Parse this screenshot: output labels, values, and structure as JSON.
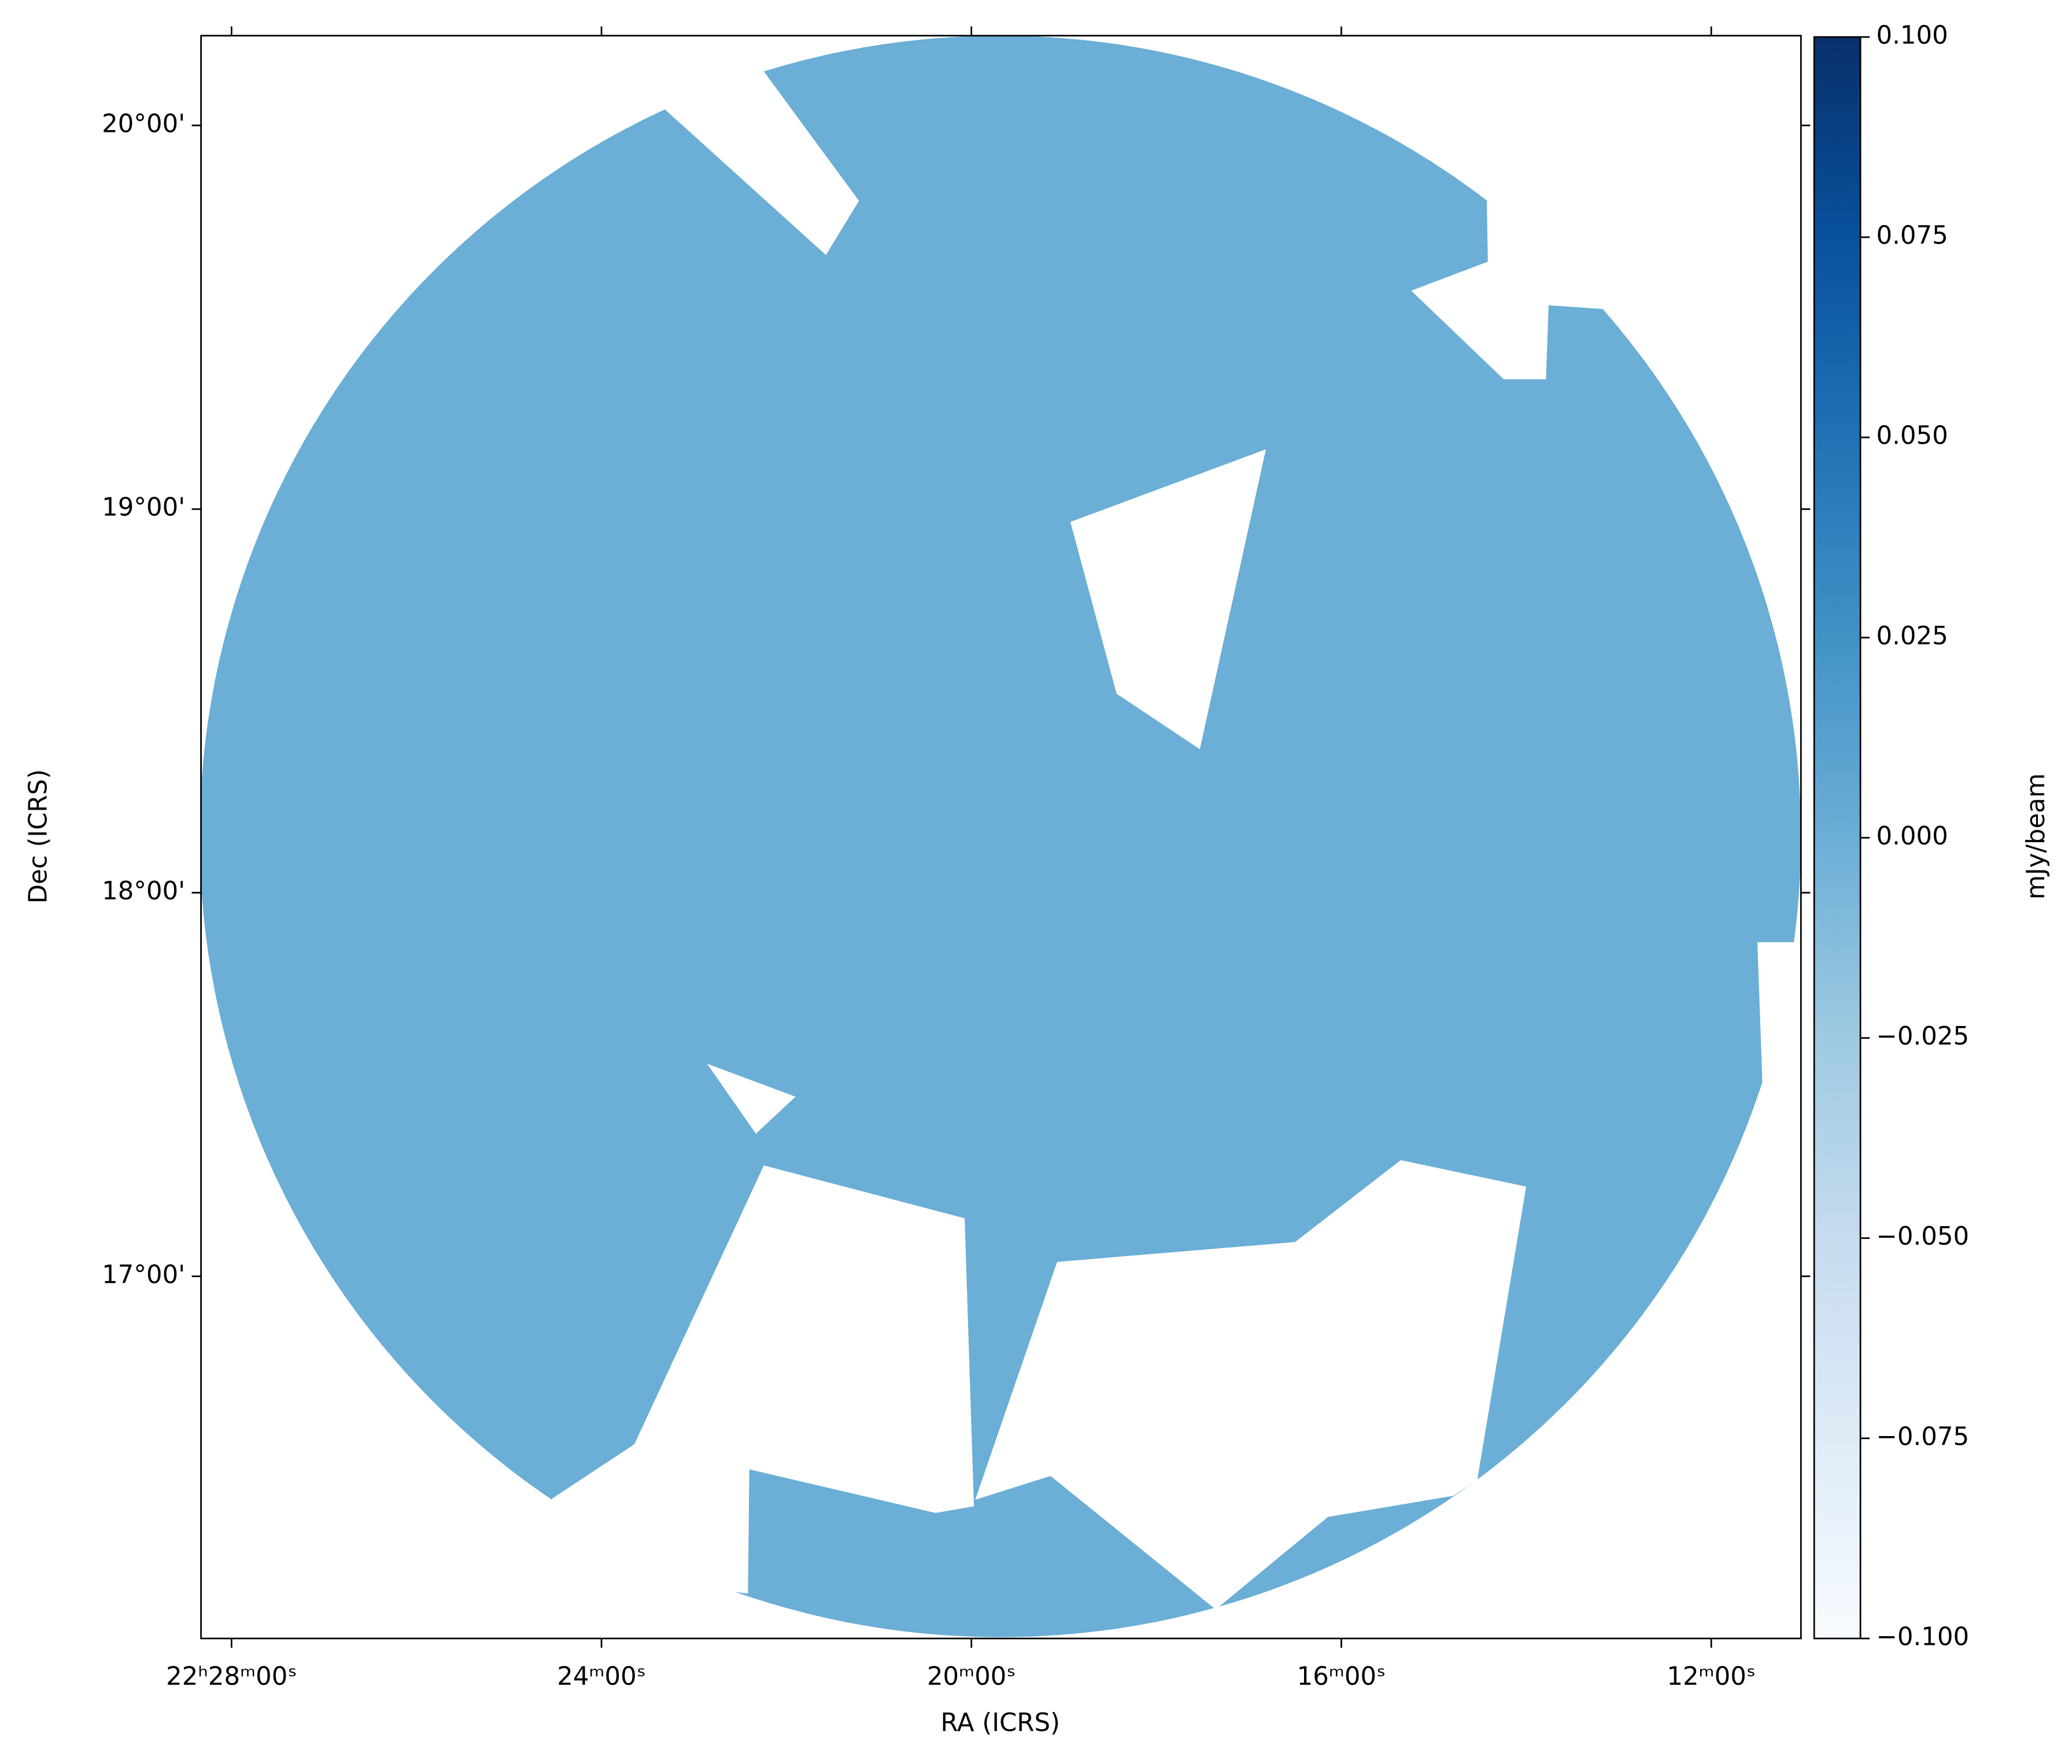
{
  "chart_data": {
    "type": "image",
    "x_label": "RA (ICRS)",
    "y_label": "Dec (ICRS)",
    "colorbar_label": "mJy/beam",
    "image_color": "#6baed6",
    "xlim": [
      28.33,
      11.03
    ],
    "xticks": [
      {
        "value": 28,
        "label": "22ʰ28ᵐ00ˢ"
      },
      {
        "value": 24,
        "label": "24ᵐ00ˢ"
      },
      {
        "value": 20,
        "label": "20ᵐ00ˢ"
      },
      {
        "value": 16,
        "label": "16ᵐ00ˢ"
      },
      {
        "value": 12,
        "label": "12ᵐ00ˢ"
      }
    ],
    "ylim": [
      16.056,
      20.234
    ],
    "yticks": [
      {
        "value": 17,
        "label": "17°00'"
      },
      {
        "value": 18,
        "label": "18°00'"
      },
      {
        "value": 19,
        "label": "19°00'"
      },
      {
        "value": 20,
        "label": "20°00'"
      }
    ],
    "clim": [
      -0.1,
      0.1
    ],
    "colorbar_colors": [
      "#f7fbff",
      "#deebf7",
      "#c6dbef",
      "#9ecae1",
      "#6baed6",
      "#4292c6",
      "#2171b5",
      "#08519c",
      "#08306b"
    ],
    "cticks": [
      {
        "value": -0.1,
        "label": "−0.100"
      },
      {
        "value": -0.075,
        "label": "−0.075"
      },
      {
        "value": -0.05,
        "label": "−0.050"
      },
      {
        "value": -0.025,
        "label": "−0.025"
      },
      {
        "value": 0,
        "label": "0.000"
      },
      {
        "value": 0.025,
        "label": "0.025"
      },
      {
        "value": 0.05,
        "label": "0.050"
      },
      {
        "value": 0.075,
        "label": "0.075"
      },
      {
        "value": 0.1,
        "label": "0.100"
      }
    ]
  }
}
